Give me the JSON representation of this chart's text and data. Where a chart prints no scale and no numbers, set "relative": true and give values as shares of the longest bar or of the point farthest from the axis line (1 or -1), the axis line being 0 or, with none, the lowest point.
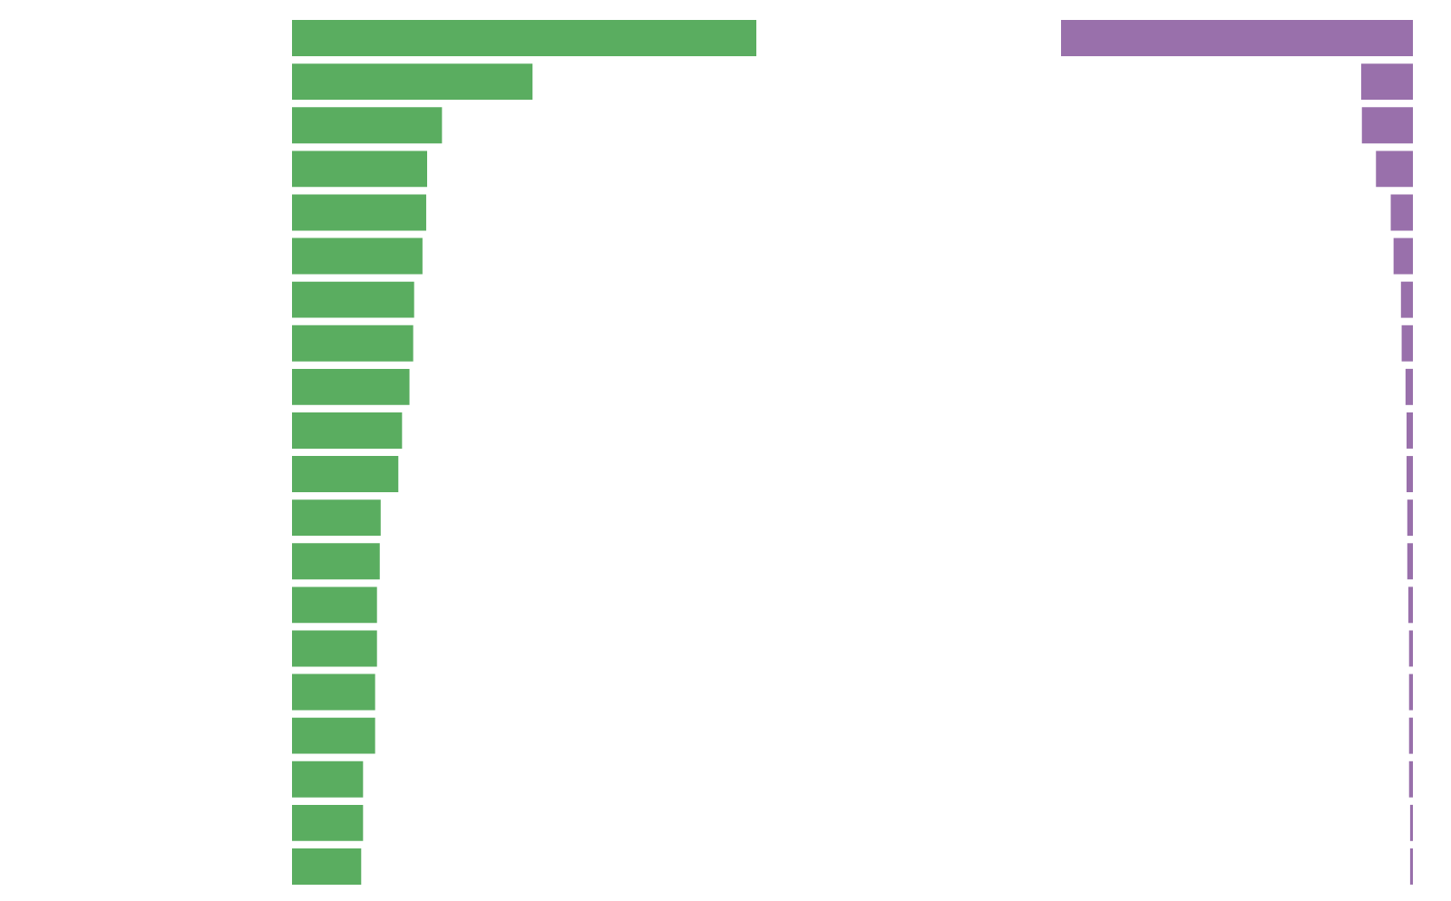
{
  "chart_data": [
    {
      "type": "bar",
      "orientation": "horizontal",
      "relative": true,
      "categories": [
        null,
        null,
        null,
        null,
        null,
        null,
        null,
        null,
        null,
        null,
        null,
        null,
        null,
        null,
        null,
        null,
        null,
        null,
        null,
        null
      ],
      "series": [
        {
          "color": "#5aad60",
          "values": [
            1,
            0.518,
            0.323,
            0.291,
            0.289,
            0.281,
            0.263,
            0.261,
            0.253,
            0.237,
            0.229,
            0.191,
            0.189,
            0.183,
            0.183,
            0.179,
            0.179,
            0.153,
            0.153,
            0.149
          ]
        }
      ]
    },
    {
      "type": "bar",
      "orientation": "horizontal",
      "relative": true,
      "categories": [
        null,
        null,
        null,
        null,
        null,
        null,
        null,
        null,
        null,
        null,
        null,
        null,
        null,
        null,
        null,
        null,
        null,
        null,
        null,
        null
      ],
      "series": [
        {
          "color": "#9970ab",
          "values": [
            -1,
            -0.147,
            -0.145,
            -0.105,
            -0.063,
            -0.055,
            -0.034,
            -0.032,
            -0.021,
            -0.018,
            -0.018,
            -0.016,
            -0.016,
            -0.013,
            -0.011,
            -0.011,
            -0.011,
            -0.011,
            -0.008,
            -0.008
          ]
        }
      ]
    }
  ]
}
